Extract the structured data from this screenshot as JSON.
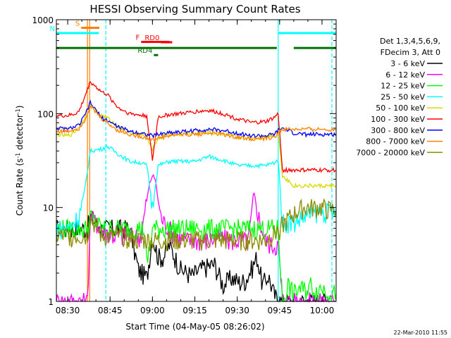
{
  "chart_data": {
    "type": "line",
    "title": "HESSI Observing Summary Count Rates",
    "xlabel": "Start Time (04-May-05 08:26:02)",
    "ylabel_main": "Count Rate (s",
    "ylabel_exp1": "-1",
    "ylabel_mid": " detector",
    "ylabel_exp2": "-1",
    "ylabel_end": ")",
    "yscale": "log",
    "ylim": [
      1,
      1000
    ],
    "xlim": [
      26.0,
      125.0
    ],
    "x_units": "minutes after 08:00 UT",
    "x_ticks": [
      {
        "x": 30,
        "label": "08:30"
      },
      {
        "x": 45,
        "label": "08:45"
      },
      {
        "x": 60,
        "label": "09:00"
      },
      {
        "x": 75,
        "label": "09:15"
      },
      {
        "x": 90,
        "label": "09:30"
      },
      {
        "x": 105,
        "label": "09:45"
      },
      {
        "x": 120,
        "label": "10:00"
      }
    ],
    "y_ticks": [
      {
        "y": 1,
        "label": "1"
      },
      {
        "y": 10,
        "label": "10"
      },
      {
        "y": 100,
        "label": "100"
      },
      {
        "y": 1000,
        "label": "1000"
      }
    ],
    "legend_header": [
      "Det 1,3,4,5,6,9,",
      "FDecim 3, Att 0"
    ],
    "legend_position": "right",
    "footer_date": "22-Mar-2010 11:55",
    "series": [
      {
        "name": "3 - 6 keV",
        "color": "#000000",
        "x": [
          26,
          30,
          34,
          37,
          38,
          42,
          46,
          49,
          52,
          55,
          58,
          60,
          62,
          64,
          66,
          70,
          74,
          78,
          82,
          85,
          88,
          91,
          93,
          95,
          97,
          99,
          101,
          103,
          104.5,
          106,
          110,
          114,
          118,
          121,
          123,
          125
        ],
        "y": [
          6,
          6,
          6,
          6,
          8,
          6,
          6,
          6,
          6,
          2.2,
          1.8,
          5,
          3,
          3,
          4,
          2.2,
          1.9,
          2.3,
          2.5,
          1.5,
          1.8,
          1.6,
          1.7,
          2.2,
          3,
          1.5,
          1.9,
          1.2,
          1,
          1,
          1,
          1,
          1,
          1,
          1,
          1
        ]
      },
      {
        "name": "6 - 12 keV",
        "color": "#ff00ff",
        "x": [
          26,
          30,
          34,
          37,
          38,
          42,
          46,
          50,
          53,
          56,
          58,
          59,
          60,
          61,
          62,
          63,
          64,
          66,
          68,
          72,
          76,
          80,
          84,
          87,
          90,
          92,
          94,
          96,
          98,
          100,
          102,
          104.5,
          106,
          110,
          114,
          118,
          121,
          125
        ],
        "y": [
          1,
          1,
          1,
          1,
          8,
          6,
          5,
          5,
          5,
          5,
          12,
          18,
          22,
          20,
          12,
          8,
          7,
          6,
          5,
          4.5,
          4.5,
          4.5,
          5,
          4.5,
          4.5,
          4.5,
          4.5,
          14,
          7,
          4.5,
          4,
          4,
          1,
          1,
          1,
          1,
          1,
          1
        ]
      },
      {
        "name": "12 - 25 keV",
        "color": "#00ff00",
        "x": [
          26,
          30,
          34,
          37,
          38,
          42,
          46,
          50,
          55,
          57,
          58,
          60,
          62,
          65,
          70,
          75,
          80,
          85,
          90,
          95,
          100,
          103,
          104.5,
          106,
          108,
          110,
          112,
          114,
          116,
          118,
          120,
          122,
          125
        ],
        "y": [
          6,
          6,
          6,
          6,
          8,
          6,
          6,
          6,
          6,
          6,
          2.5,
          6,
          6,
          6,
          6,
          6,
          6,
          6,
          6,
          6,
          6,
          6,
          6,
          1,
          1.5,
          1.2,
          1.4,
          1.3,
          1.5,
          1.3,
          1.4,
          1.3,
          1.2
        ]
      },
      {
        "name": "25 - 50 keV",
        "color": "#00ffff",
        "x": [
          26,
          30,
          34,
          36,
          38,
          42,
          44,
          46,
          48,
          52,
          56,
          58,
          60,
          62,
          66,
          70,
          75,
          80,
          85,
          90,
          95,
          100,
          103,
          104.5,
          106,
          110,
          114,
          118,
          121,
          123,
          125
        ],
        "y": [
          6,
          6,
          8,
          15,
          40,
          42,
          45,
          41,
          37,
          31,
          30,
          28,
          10,
          28,
          31,
          31,
          31,
          35,
          32,
          28,
          28,
          28,
          30,
          32,
          7,
          7,
          8,
          9,
          9,
          9,
          9
        ]
      },
      {
        "name": "50 - 100 keV",
        "color": "#d8d800",
        "x": [
          26,
          30,
          32,
          34,
          36,
          38,
          42,
          44,
          46,
          48,
          52,
          56,
          58,
          60,
          62,
          66,
          70,
          75,
          80,
          85,
          90,
          95,
          100,
          103,
          104.5,
          106,
          110,
          114,
          118,
          121,
          123,
          125
        ],
        "y": [
          60,
          58,
          62,
          72,
          90,
          120,
          95,
          90,
          80,
          72,
          62,
          60,
          58,
          42,
          55,
          60,
          60,
          62,
          64,
          60,
          56,
          55,
          56,
          60,
          65,
          22,
          17,
          17,
          17,
          17,
          17,
          17
        ]
      },
      {
        "name": "100 - 300 keV",
        "color": "#ff0000",
        "x": [
          26,
          30,
          32,
          34,
          36,
          38,
          42,
          44,
          46,
          48,
          52,
          56,
          58,
          60,
          62,
          66,
          70,
          75,
          80,
          85,
          90,
          95,
          100,
          103,
          104.5,
          106,
          110,
          114,
          118,
          121,
          123,
          125
        ],
        "y": [
          95,
          95,
          98,
          105,
          150,
          220,
          170,
          160,
          135,
          115,
          100,
          96,
          95,
          32,
          92,
          98,
          100,
          105,
          108,
          100,
          88,
          80,
          82,
          90,
          100,
          25,
          25,
          25,
          25,
          25,
          25,
          25
        ]
      },
      {
        "name": "300 - 800 keV",
        "color": "#0000ff",
        "x": [
          26,
          30,
          34,
          36,
          38,
          42,
          44,
          46,
          48,
          52,
          56,
          58,
          60,
          62,
          66,
          70,
          75,
          80,
          85,
          90,
          95,
          100,
          103,
          104.5,
          106,
          110,
          114,
          118,
          121,
          123,
          125
        ],
        "y": [
          70,
          68,
          75,
          95,
          130,
          90,
          85,
          78,
          72,
          65,
          62,
          60,
          58,
          60,
          63,
          64,
          66,
          68,
          66,
          62,
          58,
          58,
          60,
          66,
          70,
          62,
          60,
          60,
          60,
          60,
          60
        ]
      },
      {
        "name": "800 - 7000 keV",
        "color": "#ff8000",
        "x": [
          26,
          30,
          34,
          36,
          38,
          42,
          44,
          46,
          48,
          52,
          56,
          58,
          60,
          62,
          66,
          70,
          75,
          80,
          85,
          90,
          95,
          100,
          103,
          104.5,
          106,
          110,
          114,
          118,
          121,
          123,
          125
        ],
        "y": [
          65,
          65,
          70,
          85,
          120,
          88,
          80,
          72,
          66,
          60,
          57,
          55,
          52,
          55,
          58,
          60,
          60,
          62,
          60,
          56,
          54,
          54,
          56,
          62,
          68,
          68,
          68,
          68,
          68,
          68,
          68
        ]
      },
      {
        "name": "7000 - 20000 keV",
        "color": "#8b8b00",
        "x": [
          26,
          30,
          34,
          37,
          38,
          42,
          46,
          50,
          54,
          58,
          62,
          66,
          70,
          75,
          80,
          85,
          90,
          95,
          100,
          102,
          104,
          106,
          108,
          110,
          112,
          114,
          116,
          118,
          120,
          122,
          125
        ],
        "y": [
          5,
          5,
          5,
          5,
          8,
          5,
          5,
          5,
          4.5,
          4.5,
          4.5,
          4.5,
          4.5,
          4.5,
          4.5,
          4.5,
          4.5,
          4.5,
          4.5,
          5,
          5.5,
          6.5,
          7.5,
          8.5,
          9.5,
          10,
          10,
          10,
          10,
          9.5,
          9.5
        ]
      }
    ],
    "state_bars": [
      {
        "label": "S",
        "color": "#ff8000",
        "x_start": 34.8,
        "x_end": 41.2,
        "level": 820
      },
      {
        "label": "N",
        "color": "#00ffff",
        "x_start": 26.0,
        "x_end": 41.0,
        "level": 720,
        "x2_start": 104.5,
        "x2_end": 125.0
      },
      {
        "label": "F",
        "color": "#ff0000",
        "x_start": 56.0,
        "x_end": 66.0,
        "level": 580
      },
      {
        "label": "RD0",
        "color": "#ff0000",
        "x_start": 63.0,
        "x_end": 67.0,
        "level": 575
      },
      {
        "label": "RD4",
        "color": "#007000",
        "x_start": 60.5,
        "x_end": 62.0,
        "level": 420
      },
      {
        "label": "",
        "color": "#007000",
        "x_start": 26.0,
        "x_end": 104.0,
        "level": 500,
        "x2_start": 110.0,
        "x2_end": 125.0
      }
    ],
    "vertical_markers": [
      {
        "x": 37.0,
        "color": "#ff8000",
        "style": "solid"
      },
      {
        "x": 37.8,
        "color": "#ff8000",
        "style": "solid"
      },
      {
        "x": 43.5,
        "color": "#00ffff",
        "style": "dashed"
      },
      {
        "x": 104.5,
        "color": "#00ffff",
        "style": "solid"
      },
      {
        "x": 123.5,
        "color": "#00ffff",
        "style": "dashed"
      }
    ]
  }
}
